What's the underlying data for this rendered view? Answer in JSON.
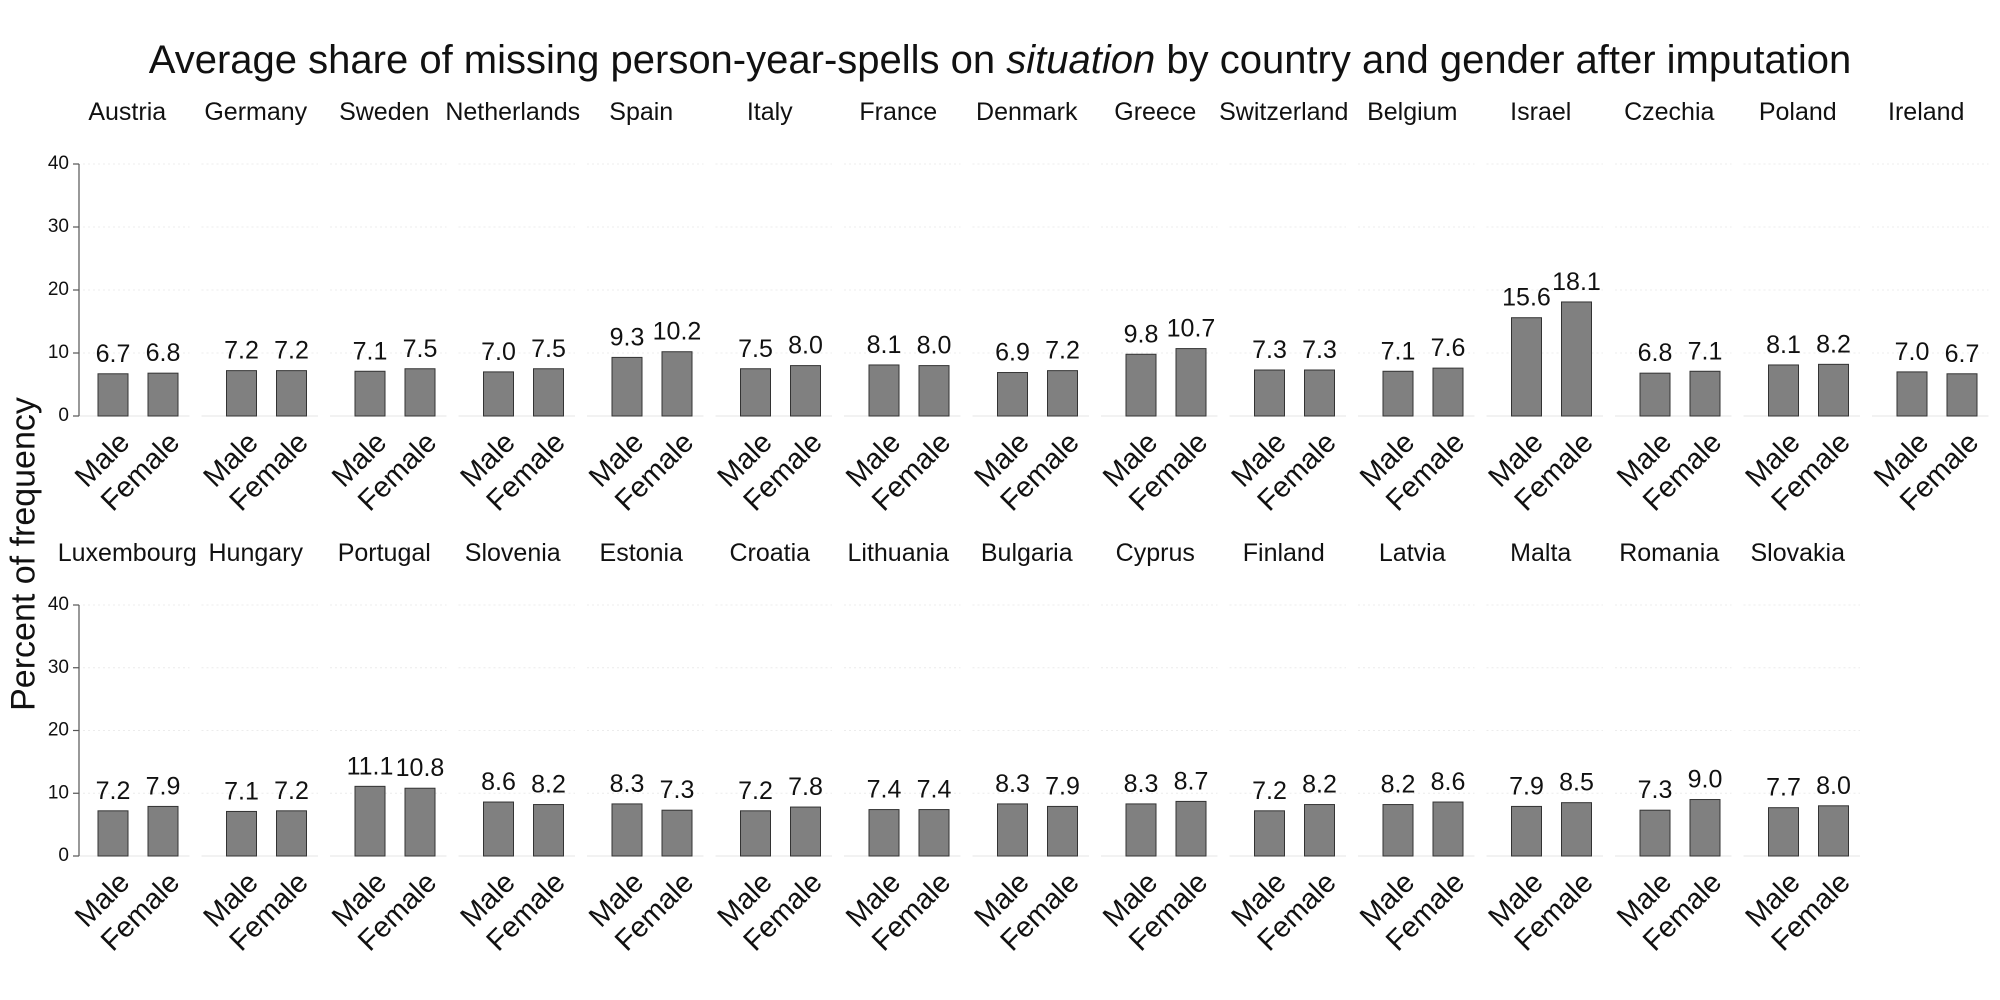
{
  "chart_data": {
    "type": "bar",
    "title_parts": [
      "Average share of missing person-year-spells on ",
      "situation",
      " by country and gender after imputation"
    ],
    "ylabel": "Percent of frequency",
    "ylim": [
      0,
      40
    ],
    "yticks": [
      "0",
      "10",
      "20",
      "30",
      "40"
    ],
    "categories": [
      "Male",
      "Female"
    ],
    "bar_color": "#808080",
    "label_decimals": 1,
    "panels": [
      {
        "name": "Austria",
        "values": [
          6.7,
          6.8
        ]
      },
      {
        "name": "Germany",
        "values": [
          7.2,
          7.2
        ]
      },
      {
        "name": "Sweden",
        "values": [
          7.1,
          7.5
        ]
      },
      {
        "name": "Netherlands",
        "values": [
          7.0,
          7.5
        ]
      },
      {
        "name": "Spain",
        "values": [
          9.3,
          10.2
        ]
      },
      {
        "name": "Italy",
        "values": [
          7.5,
          8.0
        ]
      },
      {
        "name": "France",
        "values": [
          8.1,
          8.0
        ]
      },
      {
        "name": "Denmark",
        "values": [
          6.9,
          7.2
        ]
      },
      {
        "name": "Greece",
        "values": [
          9.8,
          10.7
        ]
      },
      {
        "name": "Switzerland",
        "values": [
          7.3,
          7.3
        ]
      },
      {
        "name": "Belgium",
        "values": [
          7.1,
          7.6
        ]
      },
      {
        "name": "Israel",
        "values": [
          15.6,
          18.1
        ]
      },
      {
        "name": "Czechia",
        "values": [
          6.8,
          7.1
        ]
      },
      {
        "name": "Poland",
        "values": [
          8.1,
          8.2
        ]
      },
      {
        "name": "Ireland",
        "values": [
          7.0,
          6.7
        ]
      },
      {
        "name": "Luxembourg",
        "values": [
          7.2,
          7.9
        ]
      },
      {
        "name": "Hungary",
        "values": [
          7.1,
          7.2
        ]
      },
      {
        "name": "Portugal",
        "values": [
          11.1,
          10.8
        ]
      },
      {
        "name": "Slovenia",
        "values": [
          8.6,
          8.2
        ]
      },
      {
        "name": "Estonia",
        "values": [
          8.3,
          7.3
        ]
      },
      {
        "name": "Croatia",
        "values": [
          7.2,
          7.8
        ]
      },
      {
        "name": "Lithuania",
        "values": [
          7.4,
          7.4
        ]
      },
      {
        "name": "Bulgaria",
        "values": [
          8.3,
          7.9
        ]
      },
      {
        "name": "Cyprus",
        "values": [
          8.3,
          8.7
        ]
      },
      {
        "name": "Finland",
        "values": [
          7.2,
          8.2
        ]
      },
      {
        "name": "Latvia",
        "values": [
          8.2,
          8.6
        ]
      },
      {
        "name": "Malta",
        "values": [
          7.9,
          8.5
        ]
      },
      {
        "name": "Romania",
        "values": [
          7.3,
          9.0
        ]
      },
      {
        "name": "Slovakia",
        "values": [
          7.7,
          8.0
        ]
      }
    ]
  }
}
